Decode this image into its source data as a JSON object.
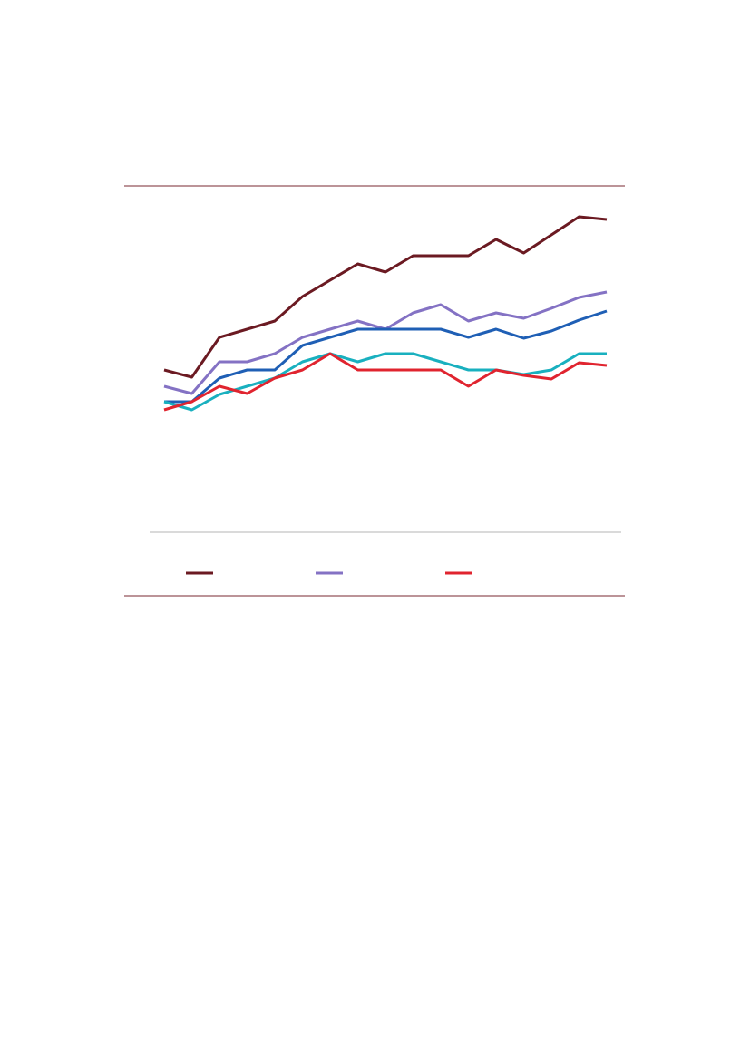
{
  "chart_data": {
    "type": "line",
    "categories": [
      null,
      null,
      null,
      null,
      null,
      null,
      null,
      null,
      null,
      null,
      null,
      null,
      null,
      null,
      null,
      null,
      null
    ],
    "ylim": [
      0,
      382
    ],
    "series": [
      {
        "color": "#6b1a22",
        "values": [
          179,
          171,
          215,
          224,
          233,
          260,
          278,
          296,
          287,
          305,
          305,
          305,
          323,
          308,
          328,
          348,
          345
        ]
      },
      {
        "color": "#8472c4",
        "values": [
          161,
          153,
          188,
          188,
          197,
          215,
          224,
          233,
          224,
          242,
          251,
          233,
          242,
          236,
          247,
          259,
          265
        ]
      },
      {
        "color": "#1f5fb5",
        "values": [
          144,
          144,
          170,
          179,
          179,
          206,
          215,
          224,
          224,
          224,
          224,
          215,
          224,
          214,
          222,
          234,
          244
        ]
      },
      {
        "color": "#19b0bf",
        "values": [
          144,
          135,
          152,
          161,
          170,
          188,
          197,
          188,
          197,
          197,
          188,
          179,
          179,
          174,
          179,
          197,
          197
        ]
      },
      {
        "color": "#e0242f",
        "values": [
          135,
          144,
          161,
          153,
          170,
          179,
          197,
          179,
          179,
          179,
          179,
          161,
          179,
          173,
          169,
          187,
          184
        ]
      }
    ]
  }
}
